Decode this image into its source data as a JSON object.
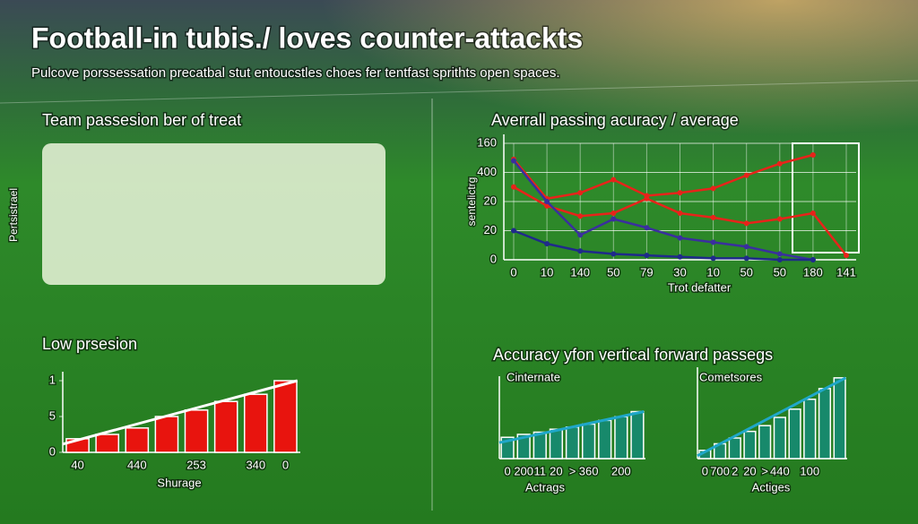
{
  "title": "Football-in tubis./ loves counter-attackts",
  "subtitle": "Pulcove porssessation precatbal stut entoucstles choes fer tentfast sprithts open spaces.",
  "panel_title": "Team passesion ber of treat",
  "side_label": "Pertsistrael",
  "section_title": "Accuracy yfon vertical forward passegs",
  "chart_data": [
    {
      "type": "line",
      "title": "Averrall passing acuracy / average",
      "x_label": "Trot defatter",
      "y_label": "sentelictrg",
      "categories": [
        "0",
        "10",
        "140",
        "50",
        "79",
        "30",
        "10",
        "50",
        "50",
        "180",
        "141"
      ],
      "ylim": [
        0,
        80
      ],
      "yticks": [
        0,
        20,
        {
          "value": 40,
          "label": "20"
        },
        {
          "value": 60,
          "label": "400"
        },
        {
          "value": 80,
          "label": "160"
        }
      ],
      "grid": true,
      "series": [
        {
          "color": "#e8231a",
          "values": [
            69,
            42,
            46,
            55,
            44,
            46,
            49,
            58,
            66,
            72,
            null
          ]
        },
        {
          "color": "#e8231a",
          "values": [
            50,
            37,
            30,
            32,
            42,
            32,
            29,
            25,
            28,
            32,
            3
          ]
        },
        {
          "color": "#3a2f9e",
          "values": [
            68,
            40,
            17,
            28,
            22,
            15,
            12,
            9,
            4,
            0,
            null
          ]
        },
        {
          "color": "#1f2a8a",
          "values": [
            20,
            11,
            6,
            4,
            3,
            2,
            1,
            1,
            0,
            0,
            null
          ]
        }
      ]
    },
    {
      "type": "bar",
      "title": "Low prsesion",
      "x_label": "Shurage",
      "categories": [
        "40",
        null,
        "440",
        null,
        "253",
        null,
        "340",
        "0"
      ],
      "values": [
        1.9,
        2.5,
        3.4,
        5,
        5.9,
        7.1,
        8.1,
        10
      ],
      "ylim": [
        0,
        10
      ],
      "yticks": [
        0,
        5,
        {
          "value": 10,
          "label": "1"
        }
      ],
      "color": "#e8140e"
    },
    {
      "type": "bar",
      "title": "Cinternate",
      "x_label": "Actrags",
      "categories": [
        "0",
        "200",
        "11",
        "20",
        ">",
        "360",
        null,
        "200",
        null
      ],
      "values": [
        29,
        33,
        36,
        40,
        43,
        47,
        52,
        57,
        64
      ],
      "ylim": [
        0,
        100
      ],
      "color": "#17896b"
    },
    {
      "type": "bar",
      "title": "Cometsores",
      "x_label": "Actiges",
      "categories": [
        "0",
        "700",
        "2",
        "20",
        ">",
        "440",
        null,
        "100",
        null,
        null
      ],
      "values": [
        10,
        18,
        25,
        33,
        40,
        50,
        60,
        72,
        85,
        98
      ],
      "ylim": [
        0,
        100
      ],
      "color": "#17896b"
    }
  ]
}
